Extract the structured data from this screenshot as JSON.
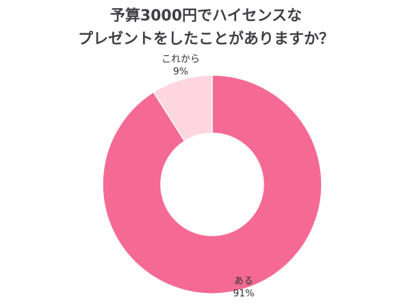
{
  "chart_data": {
    "type": "pie",
    "variant": "donut",
    "title": [
      "予算3000円でハイセンスな",
      "プレゼントをしたことがありますか？"
    ],
    "slices": [
      {
        "label": "ある",
        "value": 91,
        "value_label": "91%",
        "color": "#f56a95"
      },
      {
        "label": "これから",
        "value": 9,
        "value_label": "9%",
        "color": "#fdd6e2"
      }
    ],
    "legend": "none",
    "start_angle": "top",
    "direction": "clockwise"
  }
}
